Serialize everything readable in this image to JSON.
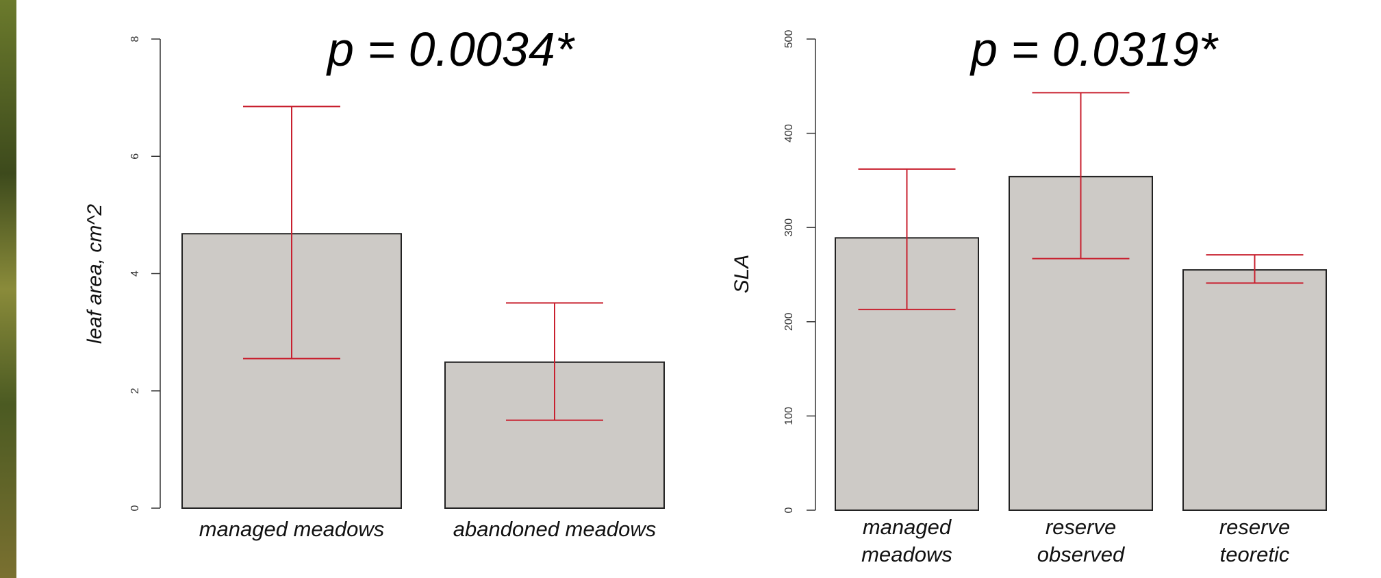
{
  "chart_data": [
    {
      "type": "bar",
      "title": "p = 0.0034*",
      "y_label": "leaf area, cm^2",
      "categories": [
        "managed meadows",
        "abandoned meadows"
      ],
      "values": [
        4.68,
        2.49
      ],
      "lower": [
        2.55,
        1.5
      ],
      "upper": [
        6.85,
        3.5
      ],
      "color": "#cdcac6",
      "error_color": "#c8202f",
      "ylim": [
        0,
        8
      ],
      "yticks": [
        0,
        2,
        4,
        6,
        8
      ]
    },
    {
      "type": "bar",
      "title": "p = 0.0319*",
      "y_label": "SLA",
      "categories": [
        "managed meadows",
        "reserve observed",
        "reserve teoretic"
      ],
      "values": [
        289,
        354,
        255
      ],
      "lower": [
        213,
        267,
        241
      ],
      "upper": [
        362,
        443,
        271
      ],
      "color": "#cdcac6",
      "error_color": "#c8202f",
      "ylim": [
        0,
        500
      ],
      "yticks": [
        0,
        100,
        200,
        300,
        400,
        500
      ]
    }
  ]
}
